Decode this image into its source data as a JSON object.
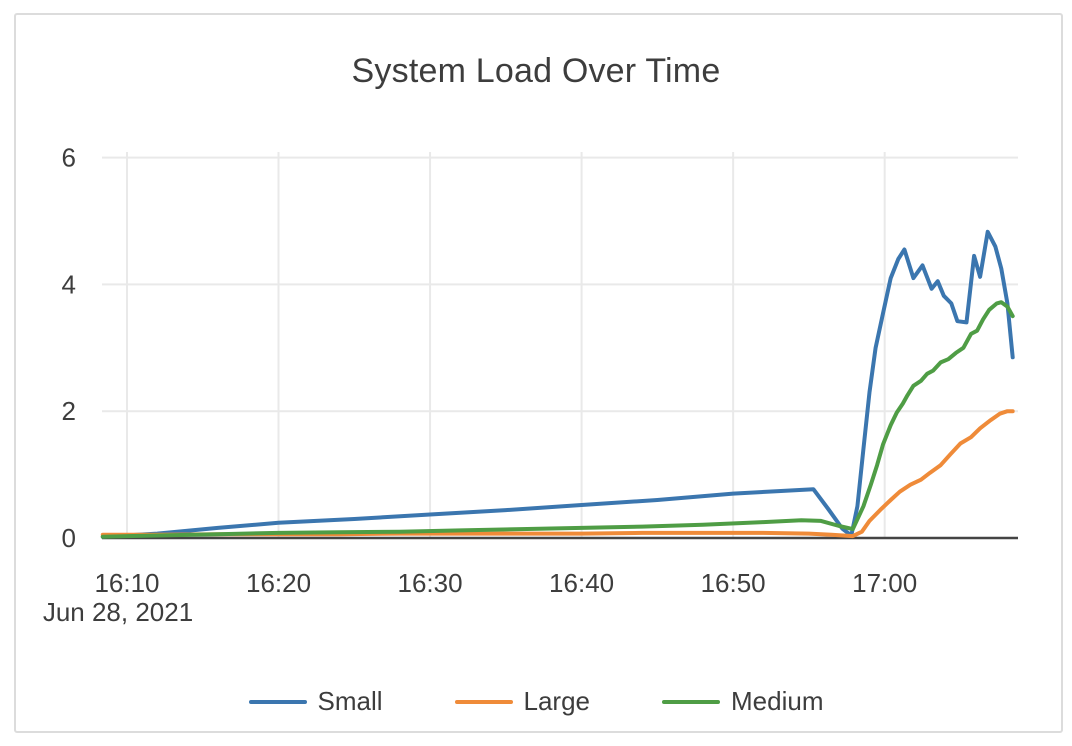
{
  "page": {
    "background": "#ffffff",
    "card_border_color": "#dcdcdc"
  },
  "chart_data": {
    "type": "line",
    "title": "System Load Over Time",
    "xlabel": "",
    "ylabel": "",
    "grid": true,
    "legend_position": "bottom-center",
    "text_color": "#3d3d3d",
    "grid_color": "#e9e9e9",
    "axis_color": "#444444",
    "x_axis": {
      "date_label": "Jun 28, 2021",
      "tick_labels": [
        "16:10",
        "16:20",
        "16:30",
        "16:40",
        "16:50",
        "17:00"
      ],
      "tick_values_minutes_after_1600": [
        10,
        20,
        30,
        40,
        50,
        60
      ],
      "range_minutes_after_1600": [
        8.35,
        68.8
      ]
    },
    "y_axis": {
      "tick_labels": [
        "0",
        "2",
        "4",
        "6"
      ],
      "tick_values": [
        0,
        2,
        4,
        6
      ],
      "range": [
        0,
        6.1
      ]
    },
    "series": [
      {
        "name": "Small",
        "color": "#3b76af",
        "points_t_v": [
          [
            8.4,
            0.02
          ],
          [
            12,
            0.07
          ],
          [
            16,
            0.16
          ],
          [
            20,
            0.24
          ],
          [
            25,
            0.3
          ],
          [
            30,
            0.37
          ],
          [
            35,
            0.44
          ],
          [
            40,
            0.52
          ],
          [
            45,
            0.6
          ],
          [
            50,
            0.7
          ],
          [
            53,
            0.74
          ],
          [
            55.3,
            0.77
          ],
          [
            56.3,
            0.45
          ],
          [
            57.2,
            0.15
          ],
          [
            57.8,
            0.04
          ],
          [
            58.2,
            0.5
          ],
          [
            58.6,
            1.4
          ],
          [
            59.0,
            2.3
          ],
          [
            59.4,
            3.0
          ],
          [
            59.9,
            3.55
          ],
          [
            60.4,
            4.1
          ],
          [
            60.9,
            4.4
          ],
          [
            61.3,
            4.55
          ],
          [
            61.9,
            4.1
          ],
          [
            62.5,
            4.3
          ],
          [
            63.1,
            3.93
          ],
          [
            63.5,
            4.05
          ],
          [
            63.9,
            3.82
          ],
          [
            64.4,
            3.7
          ],
          [
            64.8,
            3.42
          ],
          [
            65.4,
            3.4
          ],
          [
            65.9,
            4.45
          ],
          [
            66.3,
            4.12
          ],
          [
            66.8,
            4.83
          ],
          [
            67.3,
            4.6
          ],
          [
            67.7,
            4.25
          ],
          [
            68.1,
            3.7
          ],
          [
            68.45,
            2.85
          ]
        ]
      },
      {
        "name": "Large",
        "color": "#ef8b39",
        "points_t_v": [
          [
            8.4,
            0.05
          ],
          [
            12,
            0.05
          ],
          [
            16,
            0.06
          ],
          [
            20,
            0.06
          ],
          [
            24,
            0.06
          ],
          [
            28,
            0.07
          ],
          [
            32,
            0.07
          ],
          [
            36,
            0.07
          ],
          [
            40,
            0.07
          ],
          [
            44,
            0.08
          ],
          [
            48,
            0.08
          ],
          [
            52,
            0.08
          ],
          [
            55,
            0.07
          ],
          [
            56.5,
            0.05
          ],
          [
            57.9,
            0.03
          ],
          [
            58.5,
            0.1
          ],
          [
            59.0,
            0.27
          ],
          [
            59.7,
            0.44
          ],
          [
            60.4,
            0.6
          ],
          [
            61.0,
            0.73
          ],
          [
            61.7,
            0.84
          ],
          [
            62.4,
            0.92
          ],
          [
            63.0,
            1.03
          ],
          [
            63.7,
            1.15
          ],
          [
            64.3,
            1.31
          ],
          [
            65.0,
            1.49
          ],
          [
            65.7,
            1.59
          ],
          [
            66.3,
            1.73
          ],
          [
            67.0,
            1.86
          ],
          [
            67.6,
            1.96
          ],
          [
            68.1,
            2.0
          ],
          [
            68.45,
            2.0
          ]
        ]
      },
      {
        "name": "Medium",
        "color": "#4f9d45",
        "points_t_v": [
          [
            8.4,
            0.02
          ],
          [
            12,
            0.04
          ],
          [
            16,
            0.06
          ],
          [
            20,
            0.08
          ],
          [
            24,
            0.09
          ],
          [
            28,
            0.1
          ],
          [
            32,
            0.12
          ],
          [
            36,
            0.14
          ],
          [
            40,
            0.16
          ],
          [
            44,
            0.18
          ],
          [
            48,
            0.21
          ],
          [
            52,
            0.25
          ],
          [
            54.5,
            0.28
          ],
          [
            55.8,
            0.27
          ],
          [
            57.0,
            0.19
          ],
          [
            57.9,
            0.14
          ],
          [
            58.6,
            0.5
          ],
          [
            59.1,
            0.85
          ],
          [
            59.5,
            1.15
          ],
          [
            59.9,
            1.48
          ],
          [
            60.4,
            1.78
          ],
          [
            60.8,
            1.98
          ],
          [
            61.2,
            2.12
          ],
          [
            61.5,
            2.25
          ],
          [
            61.9,
            2.4
          ],
          [
            62.4,
            2.48
          ],
          [
            62.8,
            2.59
          ],
          [
            63.2,
            2.64
          ],
          [
            63.7,
            2.77
          ],
          [
            64.2,
            2.82
          ],
          [
            64.7,
            2.92
          ],
          [
            65.2,
            3.0
          ],
          [
            65.7,
            3.22
          ],
          [
            66.1,
            3.27
          ],
          [
            66.5,
            3.45
          ],
          [
            66.9,
            3.6
          ],
          [
            67.4,
            3.7
          ],
          [
            67.7,
            3.72
          ],
          [
            68.1,
            3.65
          ],
          [
            68.45,
            3.5
          ]
        ]
      }
    ]
  }
}
